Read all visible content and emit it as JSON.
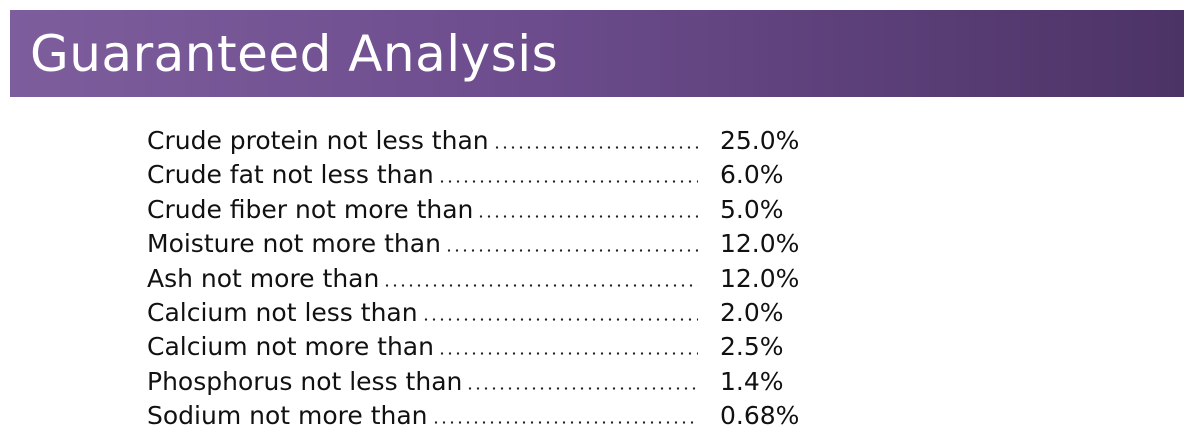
{
  "header": {
    "title": "Guaranteed Analysis"
  },
  "rows": [
    {
      "label": "Crude protein not less than",
      "value": "25.0%"
    },
    {
      "label": "Crude fat not less than",
      "value": "6.0%"
    },
    {
      "label": "Crude fiber not more than",
      "value": "5.0%"
    },
    {
      "label": "Moisture not more than",
      "value": "12.0%"
    },
    {
      "label": "Ash not more than",
      "value": "12.0%"
    },
    {
      "label": "Calcium not less than",
      "value": "2.0%"
    },
    {
      "label": "Calcium not more than",
      "value": "2.5%"
    },
    {
      "label": "Phosphorus not less than",
      "value": "1.4%"
    },
    {
      "label": "Sodium not more than",
      "value": "0.68%"
    }
  ]
}
